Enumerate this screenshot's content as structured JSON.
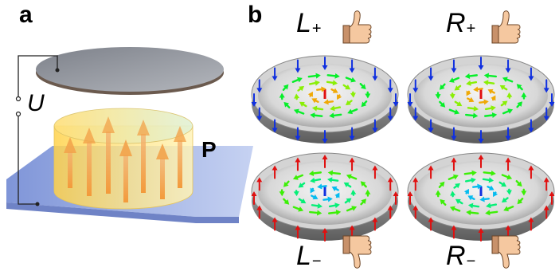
{
  "panel_a": {
    "letter": "a",
    "voltage_label": "U",
    "polarization_label": "P"
  },
  "panel_b": {
    "letter": "b",
    "states": [
      {
        "letter": "L",
        "sign": "+",
        "thumb": "thumbs-up-icon"
      },
      {
        "letter": "R",
        "sign": "+",
        "thumb": "thumbs-up-icon"
      },
      {
        "letter": "L",
        "sign": "−",
        "thumb": "thumbs-down-icon"
      },
      {
        "letter": "R",
        "sign": "−",
        "thumb": "thumbs-down-icon"
      }
    ]
  },
  "colors": {
    "substrate": "#9aaee0",
    "capacitor_body": "#ffd95a",
    "top_plate": "#8b8f98",
    "arrow_orange": "#f2a24a",
    "rim_up": "#e01010",
    "rim_down": "#1030e0",
    "dish": "#b9b9b9",
    "skin": "#f5c8a0"
  }
}
